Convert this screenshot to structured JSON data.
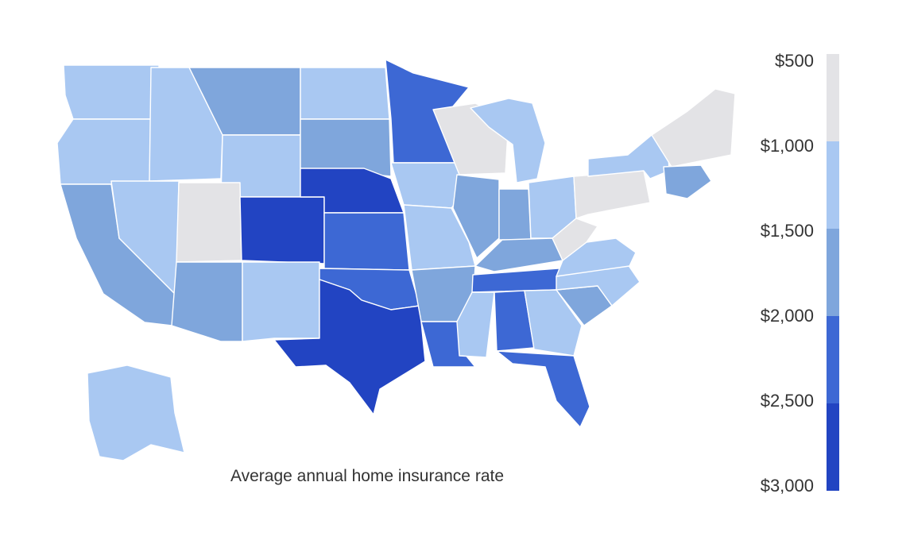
{
  "title": "Average annual home insurance rate",
  "legend": {
    "ticks": [
      "$500",
      "$1,000",
      "$1,500",
      "$2,000",
      "$2,500",
      "$3,000"
    ],
    "colors": [
      "#e3e3e6",
      "#a9c8f2",
      "#7fa6dc",
      "#3d68d4",
      "#2244c2"
    ]
  },
  "map": {
    "states": [
      {
        "name": "Washington",
        "bucket": 1
      },
      {
        "name": "Oregon",
        "bucket": 1
      },
      {
        "name": "California",
        "bucket": 2
      },
      {
        "name": "Idaho",
        "bucket": 1
      },
      {
        "name": "Nevada",
        "bucket": 1
      },
      {
        "name": "Montana",
        "bucket": 2
      },
      {
        "name": "Wyoming",
        "bucket": 1
      },
      {
        "name": "Utah",
        "bucket": 0
      },
      {
        "name": "Arizona",
        "bucket": 2
      },
      {
        "name": "Colorado",
        "bucket": 4
      },
      {
        "name": "New Mexico",
        "bucket": 1
      },
      {
        "name": "North Dakota",
        "bucket": 1
      },
      {
        "name": "South Dakota",
        "bucket": 2
      },
      {
        "name": "Nebraska",
        "bucket": 4
      },
      {
        "name": "Kansas",
        "bucket": 3
      },
      {
        "name": "Oklahoma",
        "bucket": 3
      },
      {
        "name": "Texas",
        "bucket": 4
      },
      {
        "name": "Minnesota",
        "bucket": 3
      },
      {
        "name": "Iowa",
        "bucket": 1
      },
      {
        "name": "Missouri",
        "bucket": 1
      },
      {
        "name": "Arkansas",
        "bucket": 2
      },
      {
        "name": "Louisiana",
        "bucket": 3
      },
      {
        "name": "Wisconsin",
        "bucket": 0
      },
      {
        "name": "Michigan",
        "bucket": 1
      },
      {
        "name": "Illinois",
        "bucket": 2
      },
      {
        "name": "Indiana",
        "bucket": 2
      },
      {
        "name": "Ohio",
        "bucket": 1
      },
      {
        "name": "Kentucky",
        "bucket": 2
      },
      {
        "name": "Tennessee",
        "bucket": 3
      },
      {
        "name": "Mississippi",
        "bucket": 1
      },
      {
        "name": "Alabama",
        "bucket": 3
      },
      {
        "name": "Georgia",
        "bucket": 1
      },
      {
        "name": "Florida",
        "bucket": 3
      },
      {
        "name": "South Carolina",
        "bucket": 2
      },
      {
        "name": "North Carolina",
        "bucket": 1
      },
      {
        "name": "Virginia",
        "bucket": 1
      },
      {
        "name": "West Virginia",
        "bucket": 0
      },
      {
        "name": "Pennsylvania",
        "bucket": 0
      },
      {
        "name": "New York",
        "bucket": 1
      },
      {
        "name": "New England",
        "bucket": 0
      },
      {
        "name": "Massachusetts",
        "bucket": 2
      },
      {
        "name": "Alaska",
        "bucket": 1
      }
    ]
  }
}
